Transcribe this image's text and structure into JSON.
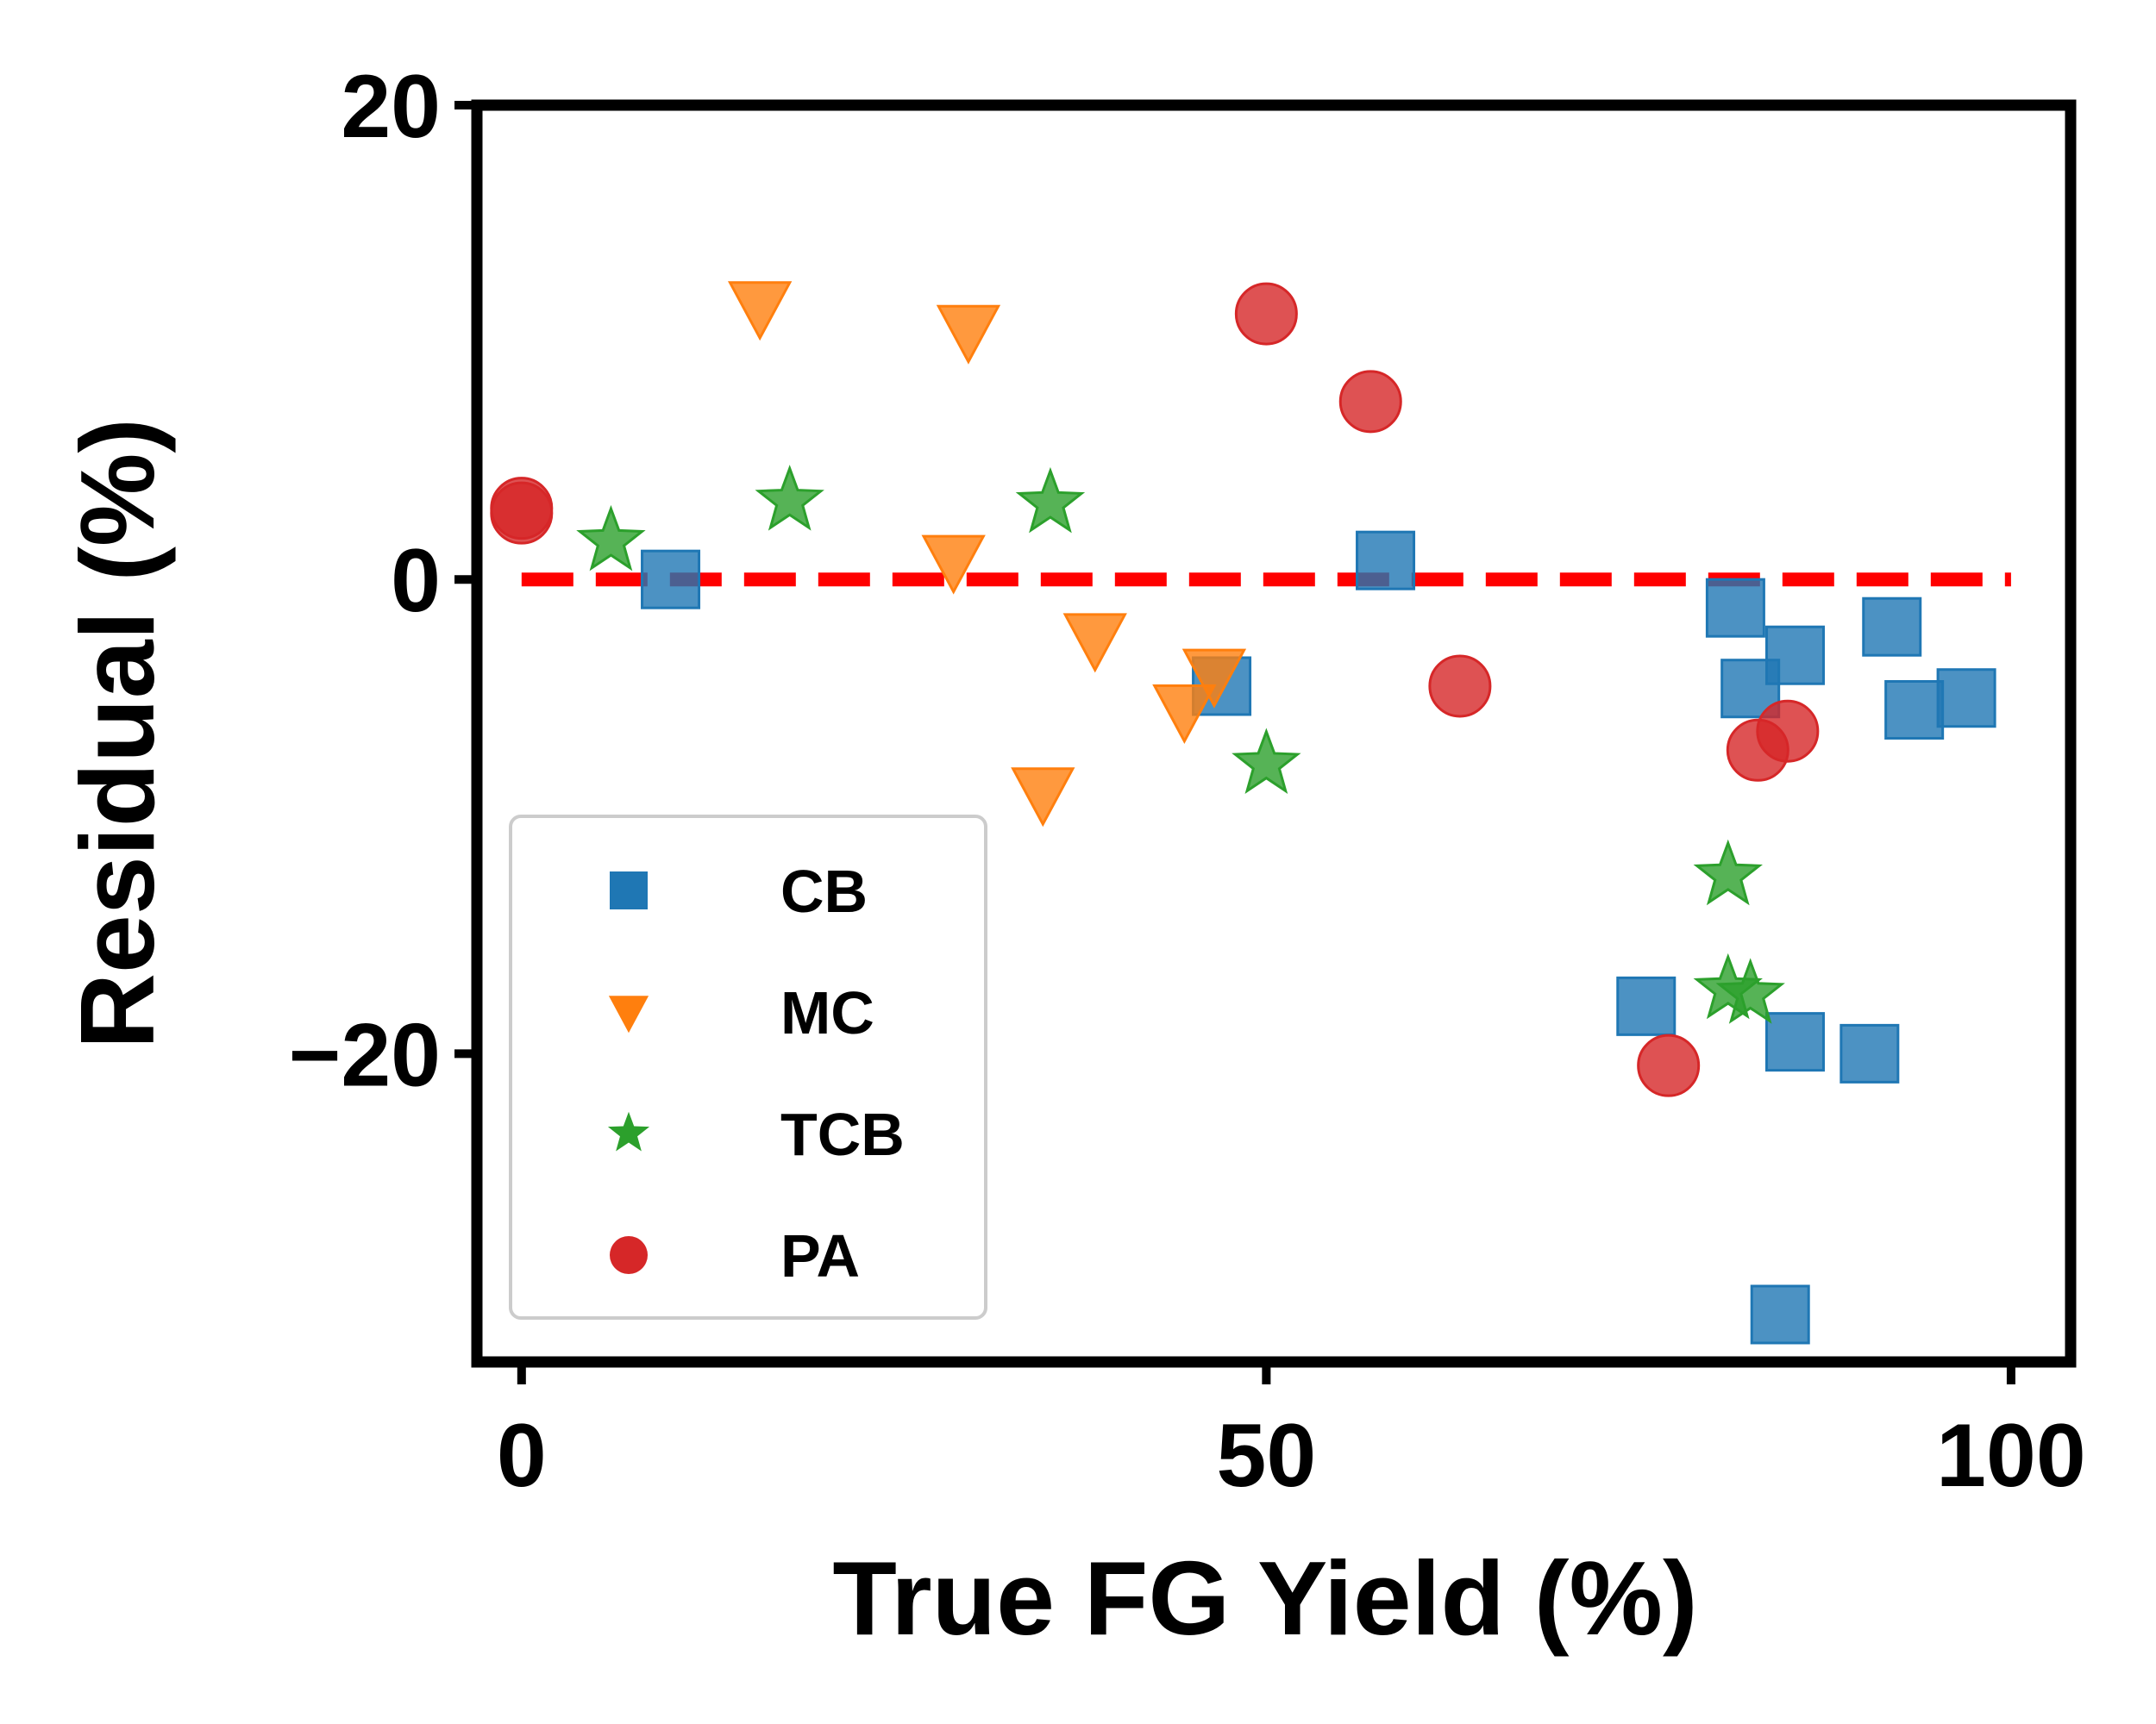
{
  "chart_data": {
    "type": "scatter",
    "xlabel": "True FG Yield (%)",
    "ylabel": "Residual (%)",
    "xlim": [
      -3,
      104
    ],
    "ylim": [
      -33,
      20
    ],
    "xticks": [
      0,
      50,
      100
    ],
    "yticks": [
      -20,
      0,
      20
    ],
    "grid": false,
    "legend_position": "lower-left",
    "reference_line": {
      "y": 0,
      "x_range": [
        0,
        100
      ],
      "style": "dashed",
      "color": "#ff0000"
    },
    "series": [
      {
        "name": "CB",
        "marker": "square",
        "color": "#1f77b4",
        "points": [
          [
            10,
            0
          ],
          [
            58,
            0.8
          ],
          [
            47,
            -4.5
          ],
          [
            81.5,
            -1.2
          ],
          [
            82.5,
            -4.6
          ],
          [
            85.5,
            -3.2
          ],
          [
            92,
            -2
          ],
          [
            93.5,
            -5.5
          ],
          [
            97,
            -5
          ],
          [
            75.5,
            -18
          ],
          [
            85.5,
            -19.5
          ],
          [
            90.5,
            -20
          ],
          [
            84.5,
            -31
          ]
        ]
      },
      {
        "name": "MC",
        "marker": "triangle-down",
        "color": "#ff7f0e",
        "points": [
          [
            16,
            11.5
          ],
          [
            30,
            10.5
          ],
          [
            29,
            0.8
          ],
          [
            38.5,
            -2.5
          ],
          [
            46.5,
            -4
          ],
          [
            44.5,
            -5.5
          ],
          [
            35,
            -9
          ]
        ]
      },
      {
        "name": "TCB",
        "marker": "star",
        "color": "#2ca02c",
        "points": [
          [
            6,
            1.6
          ],
          [
            18,
            3.3
          ],
          [
            35.5,
            3.2
          ],
          [
            50,
            -7.8
          ],
          [
            81,
            -12.5
          ],
          [
            81,
            -17.3
          ],
          [
            82.5,
            -17.5
          ]
        ]
      },
      {
        "name": "PA",
        "marker": "circle",
        "color": "#d62728",
        "points": [
          [
            0,
            3
          ],
          [
            0,
            2.8
          ],
          [
            50,
            11.2
          ],
          [
            57,
            7.5
          ],
          [
            63,
            -4.5
          ],
          [
            83,
            -7.2
          ],
          [
            85,
            -6.4
          ],
          [
            77,
            -20.5
          ]
        ]
      }
    ]
  }
}
